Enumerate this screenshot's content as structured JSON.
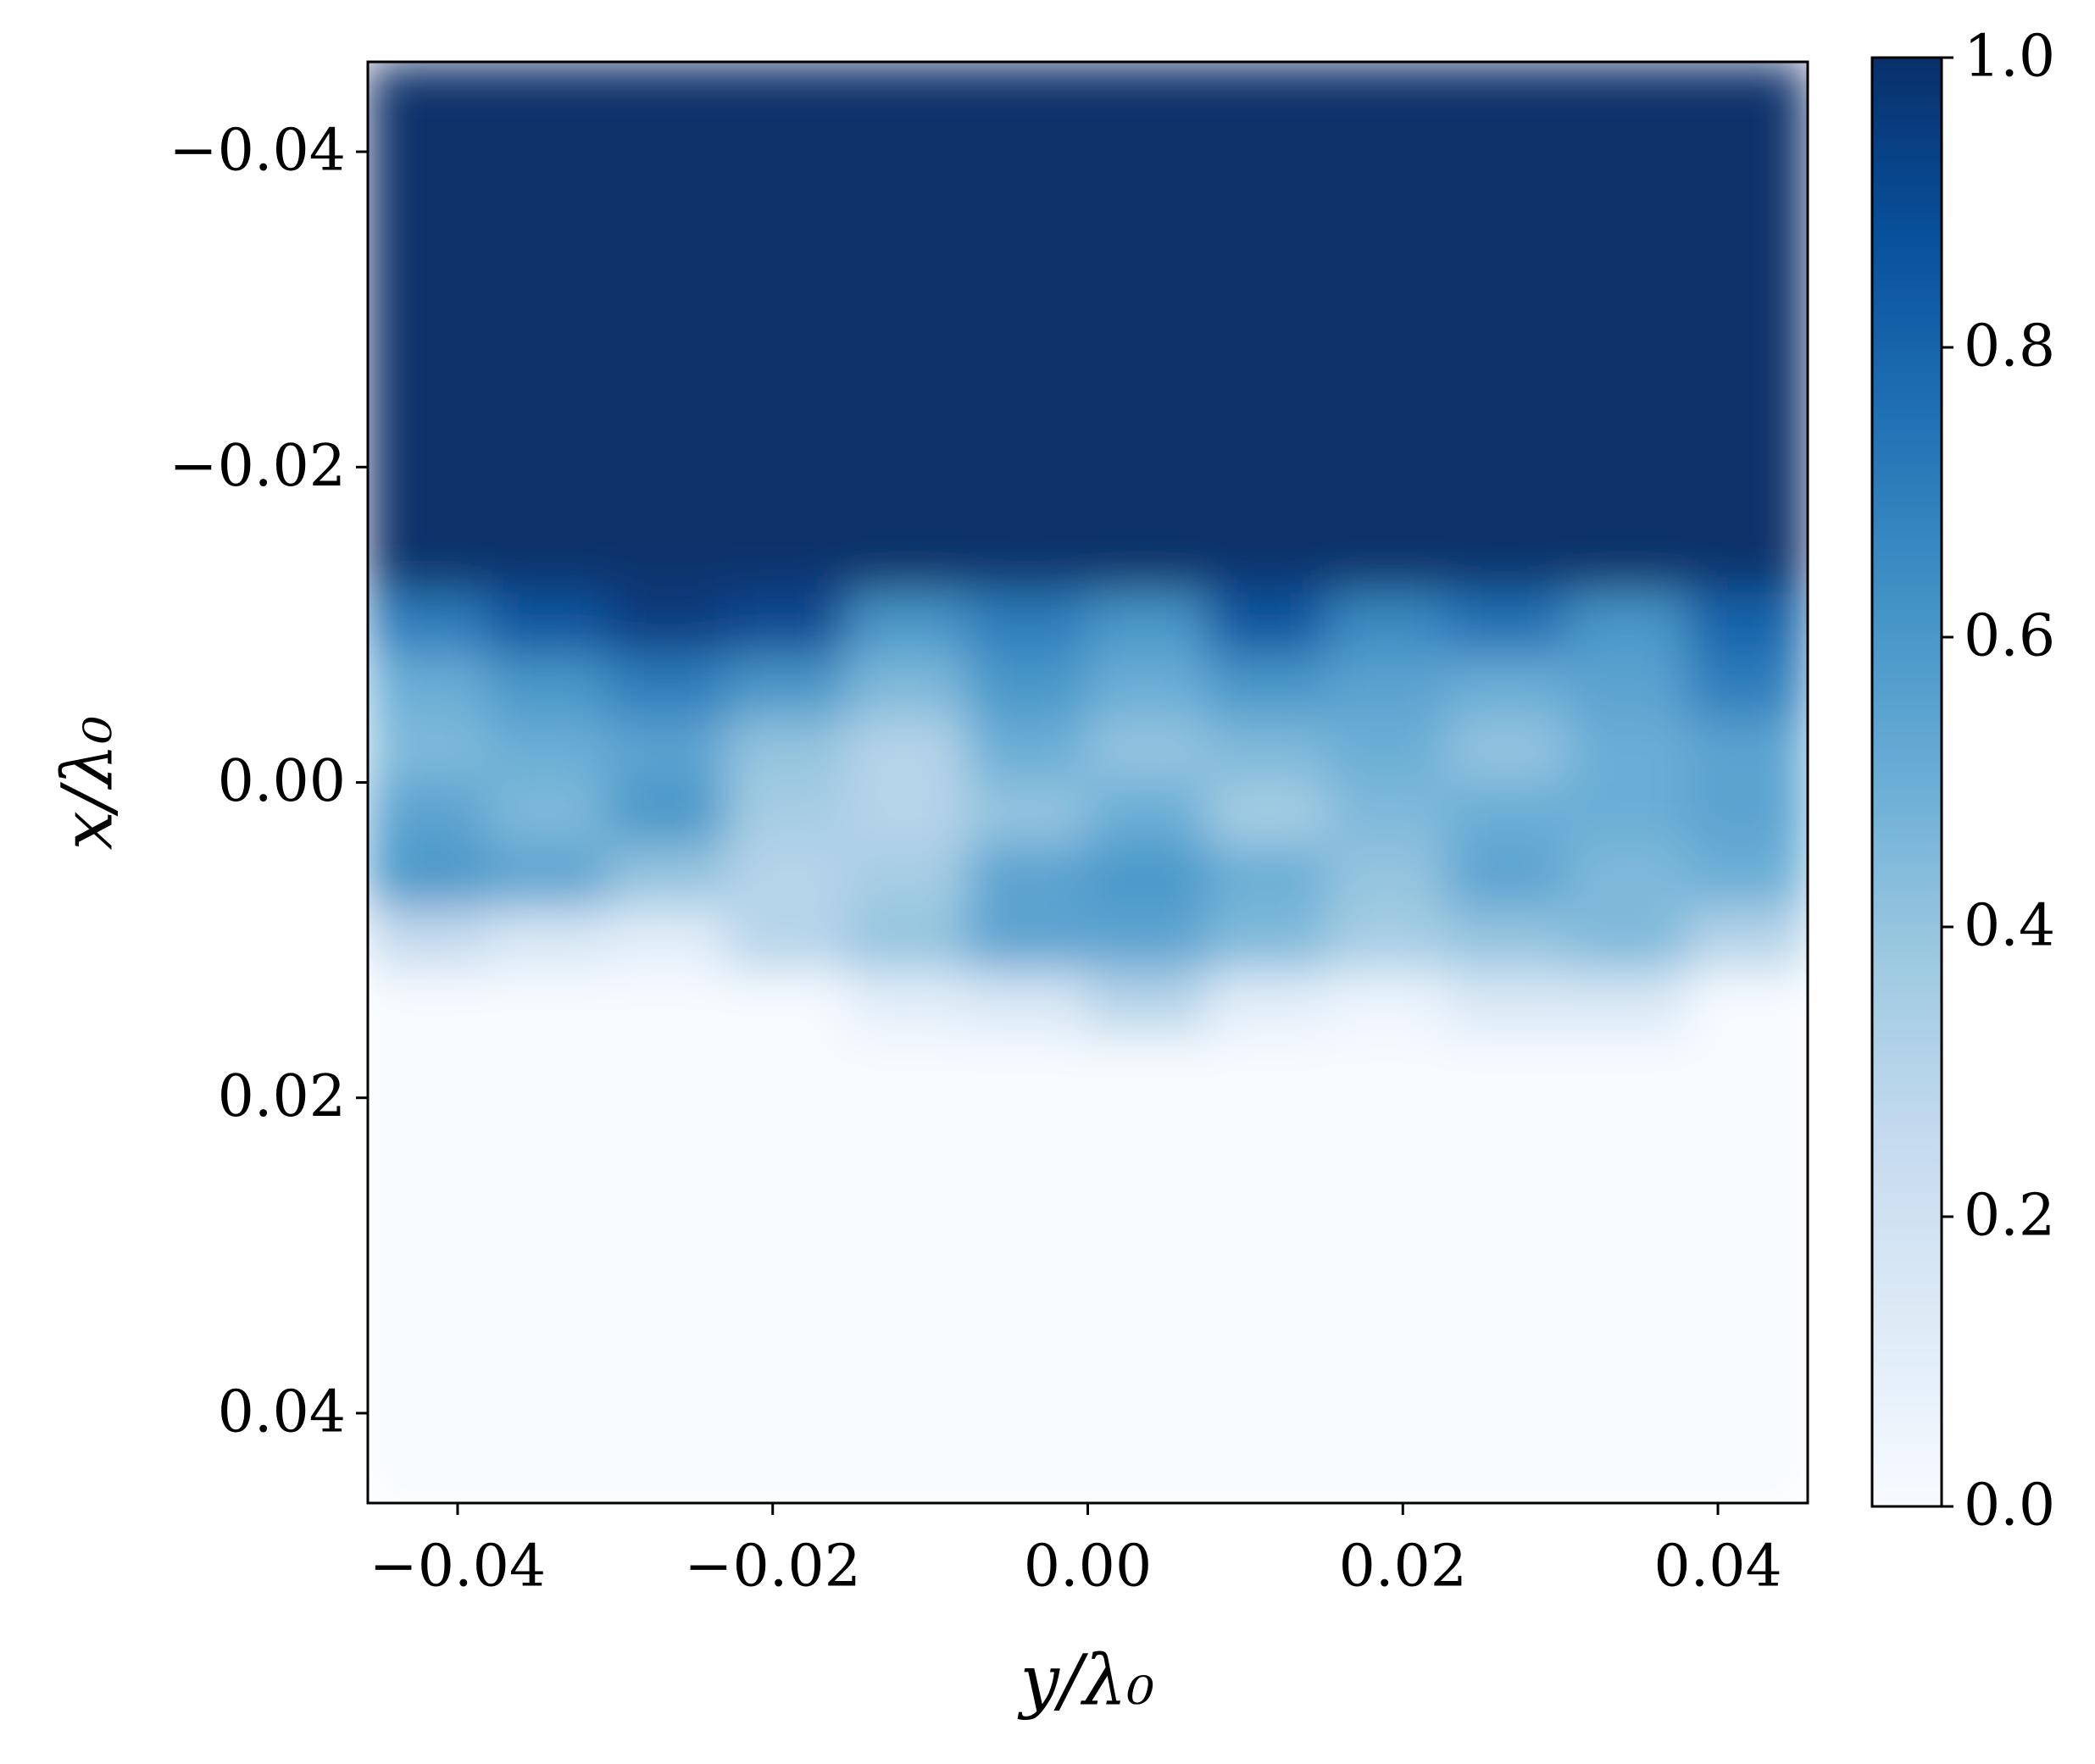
{
  "chart_data": {
    "type": "image",
    "x_label": "y/λ₀",
    "y_label": "x/λ₀",
    "xlim": [
      -0.0457,
      0.0457
    ],
    "ylim": [
      -0.0457,
      0.0457
    ],
    "y_inverted": true,
    "xticks": [
      {
        "value": -0.04,
        "label": "−0.04"
      },
      {
        "value": -0.02,
        "label": "−0.02"
      },
      {
        "value": 0,
        "label": "0.00"
      },
      0.02,
      0.04
    ],
    "yticks": [
      {
        "value": -0.04,
        "label": "−0.04"
      },
      {
        "value": -0.02,
        "label": "−0.02"
      },
      {
        "value": 0,
        "label": "0.00"
      },
      0.02,
      0.04
    ],
    "row_edges": [
      -0.0457,
      -0.012,
      -0.008,
      -0.004,
      0,
      0.004,
      0.008,
      0.012,
      0.016,
      0.0457
    ],
    "column_count": 12,
    "z": [
      [
        1,
        1,
        1,
        1,
        1,
        1,
        1,
        1,
        1,
        1,
        1,
        1
      ],
      [
        0.7,
        0.85,
        0.95,
        0.9,
        0.6,
        0.7,
        0.6,
        0.85,
        0.65,
        0.75,
        0.6,
        0.8
      ],
      [
        0.5,
        0.6,
        0.7,
        0.6,
        0.45,
        0.6,
        0.5,
        0.6,
        0.55,
        0.5,
        0.55,
        0.7
      ],
      [
        0.45,
        0.5,
        0.55,
        0.4,
        0.3,
        0.5,
        0.4,
        0.45,
        0.5,
        0.4,
        0.5,
        0.55
      ],
      [
        0.55,
        0.45,
        0.6,
        0.35,
        0.3,
        0.4,
        0.5,
        0.35,
        0.45,
        0.5,
        0.5,
        0.55
      ],
      [
        0.6,
        0.55,
        0.4,
        0.3,
        0.35,
        0.55,
        0.6,
        0.5,
        0.4,
        0.55,
        0.45,
        0.5
      ],
      [
        0.25,
        0.15,
        0.1,
        0.3,
        0.4,
        0.55,
        0.55,
        0.45,
        0.35,
        0.4,
        0.45,
        0.3
      ],
      [
        0,
        0,
        0,
        0,
        0.1,
        0.15,
        0.3,
        0.1,
        0.05,
        0.15,
        0.15,
        0
      ],
      [
        0,
        0,
        0,
        0,
        0,
        0,
        0,
        0,
        0,
        0,
        0,
        0
      ]
    ],
    "colormap_colors": [
      "#f7fbff",
      "#deebf7",
      "#c6dbef",
      "#9ecae1",
      "#6baed6",
      "#4292c6",
      "#2171b5",
      "#08519c",
      "#08306b"
    ],
    "colorbar_lim": [
      0,
      1
    ],
    "colorbar_ticks": [
      {
        "value": 0,
        "label": "0.0"
      },
      0.2,
      0.4,
      0.6,
      0.8,
      {
        "value": 1,
        "label": "1.0"
      }
    ]
  }
}
